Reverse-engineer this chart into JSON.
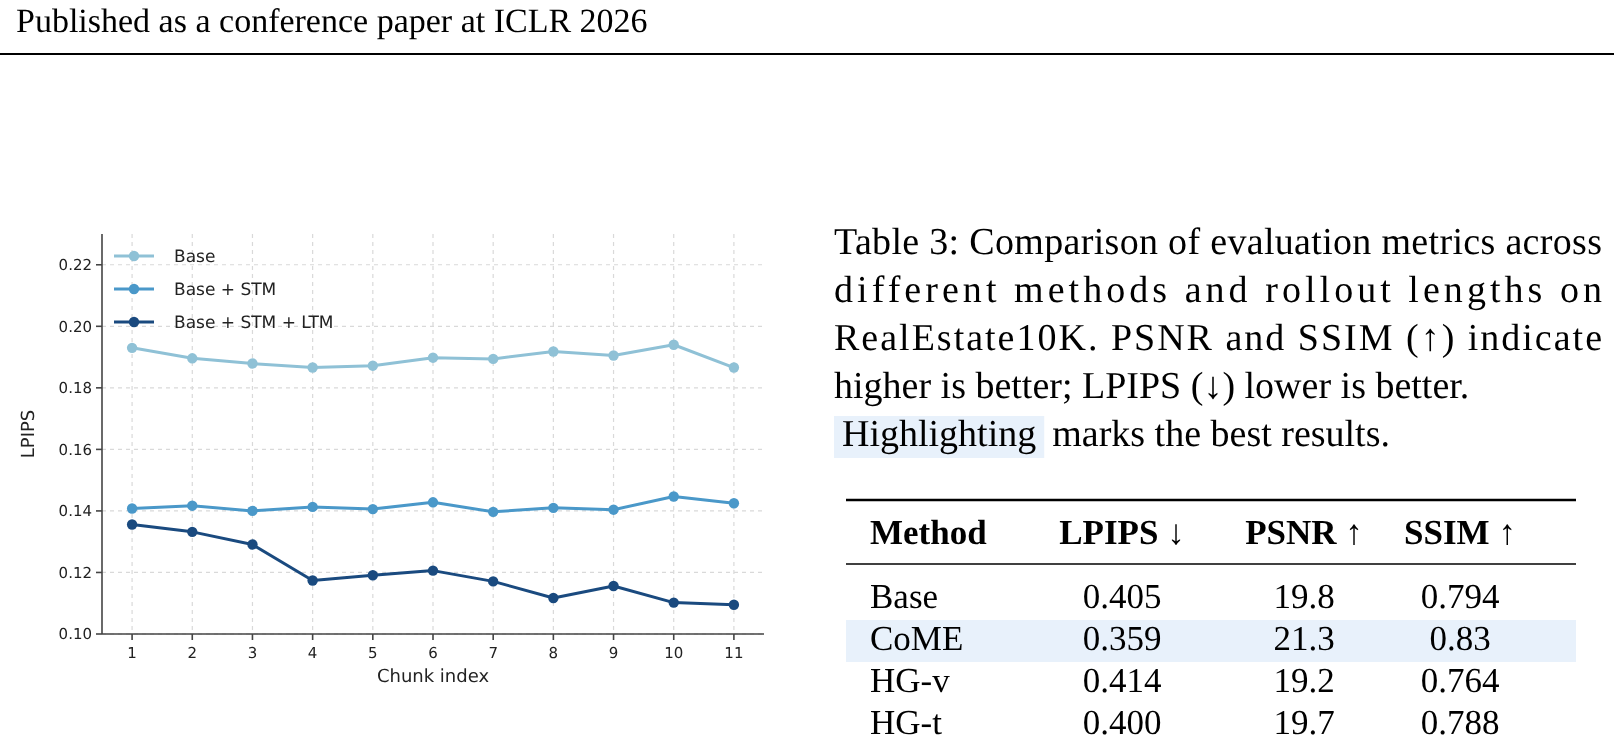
{
  "chart_data": [
    {
      "type": "line",
      "annotations": [
        "Published as a conference paper at ICLR 2026"
      ],
      "xlabel": "Chunk index",
      "ylabel": "LPIPS",
      "x": [
        1,
        2,
        3,
        4,
        5,
        6,
        7,
        8,
        9,
        10,
        11
      ],
      "xlim": [
        0.5,
        11.5
      ],
      "xticks": [
        1,
        2,
        3,
        4,
        5,
        6,
        7,
        8,
        9,
        10,
        11
      ],
      "ylim": [
        0.1,
        0.23
      ],
      "yticks": [
        {
          "value": 0.1,
          "label": "0.10"
        },
        0.12,
        0.14,
        0.16,
        0.18,
        {
          "value": 0.2,
          "label": "0.20"
        },
        0.22
      ],
      "grid": true,
      "legend": "top left",
      "marker": "circle",
      "line_style": "solid",
      "series": [
        {
          "name": "Base",
          "color": "#8fc1d6",
          "values": [
            0.193,
            0.1896,
            0.1879,
            0.1866,
            0.1872,
            0.1898,
            0.1894,
            0.1918,
            0.1905,
            0.194,
            0.1866
          ]
        },
        {
          "name": "Base + STM",
          "color": "#4a98c9",
          "values": [
            0.1408,
            0.1417,
            0.14,
            0.1413,
            0.1406,
            0.1428,
            0.1397,
            0.141,
            0.1404,
            0.1447,
            0.1425
          ]
        },
        {
          "name": "Base + STM + LTM",
          "color": "#1a4a7f",
          "values": [
            0.1356,
            0.1332,
            0.1291,
            0.1174,
            0.1191,
            0.1206,
            0.1171,
            0.1117,
            0.1156,
            0.1102,
            0.1095
          ]
        }
      ]
    },
    {
      "type": "other",
      "title": "Table 3: Comparison of evaluation metrics across different methods and rollout lengths on RealEstate10K. PSNR and SSIM (↑) indicate higher is better; LPIPS (↓) lower is better.",
      "subtitle": "Highlighting marks the best results.",
      "ylabel": "Method",
      "categories": [
        "Base",
        "CoME",
        "HG-v",
        "HG-t"
      ],
      "colors": [
        null,
        "#e8f1fb",
        null,
        null
      ],
      "series": [
        {
          "name": "LPIPS ↓",
          "values": [
            0.405,
            0.359,
            0.414,
            0.4
          ],
          "value_labels": [
            "0.405",
            "0.359",
            "0.414",
            "0.400"
          ]
        },
        {
          "name": "PSNR ↑",
          "values": [
            19.8,
            21.3,
            19.2,
            19.7
          ],
          "value_labels": [
            "19.8",
            "21.3",
            "19.2",
            "19.7"
          ]
        },
        {
          "name": "SSIM ↑",
          "values": [
            0.794,
            0.83,
            0.764,
            0.788
          ],
          "value_labels": [
            "0.794",
            "0.83",
            "0.764",
            "0.788"
          ]
        }
      ]
    }
  ]
}
